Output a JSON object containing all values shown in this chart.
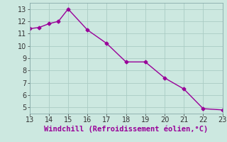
{
  "x": [
    13,
    13.5,
    14,
    14.5,
    15,
    16,
    17,
    18,
    19,
    20,
    21,
    22,
    23
  ],
  "y": [
    11.4,
    11.5,
    11.8,
    12.0,
    13.0,
    11.3,
    10.2,
    8.7,
    8.7,
    7.4,
    6.5,
    4.9,
    4.8
  ],
  "line_color": "#990099",
  "marker": "D",
  "marker_size": 2.5,
  "background_color": "#cce8e0",
  "grid_color": "#aaccc4",
  "xlabel": "Windchill (Refroidissement éolien,°C)",
  "xlim": [
    13,
    23
  ],
  "ylim": [
    4.5,
    13.5
  ],
  "xticks": [
    13,
    14,
    15,
    16,
    17,
    18,
    19,
    20,
    21,
    22,
    23
  ],
  "yticks": [
    5,
    6,
    7,
    8,
    9,
    10,
    11,
    12,
    13
  ],
  "xlabel_color": "#990099",
  "tick_color": "#333333",
  "tick_fontsize": 7,
  "xlabel_fontsize": 7.5,
  "linewidth": 1.0
}
